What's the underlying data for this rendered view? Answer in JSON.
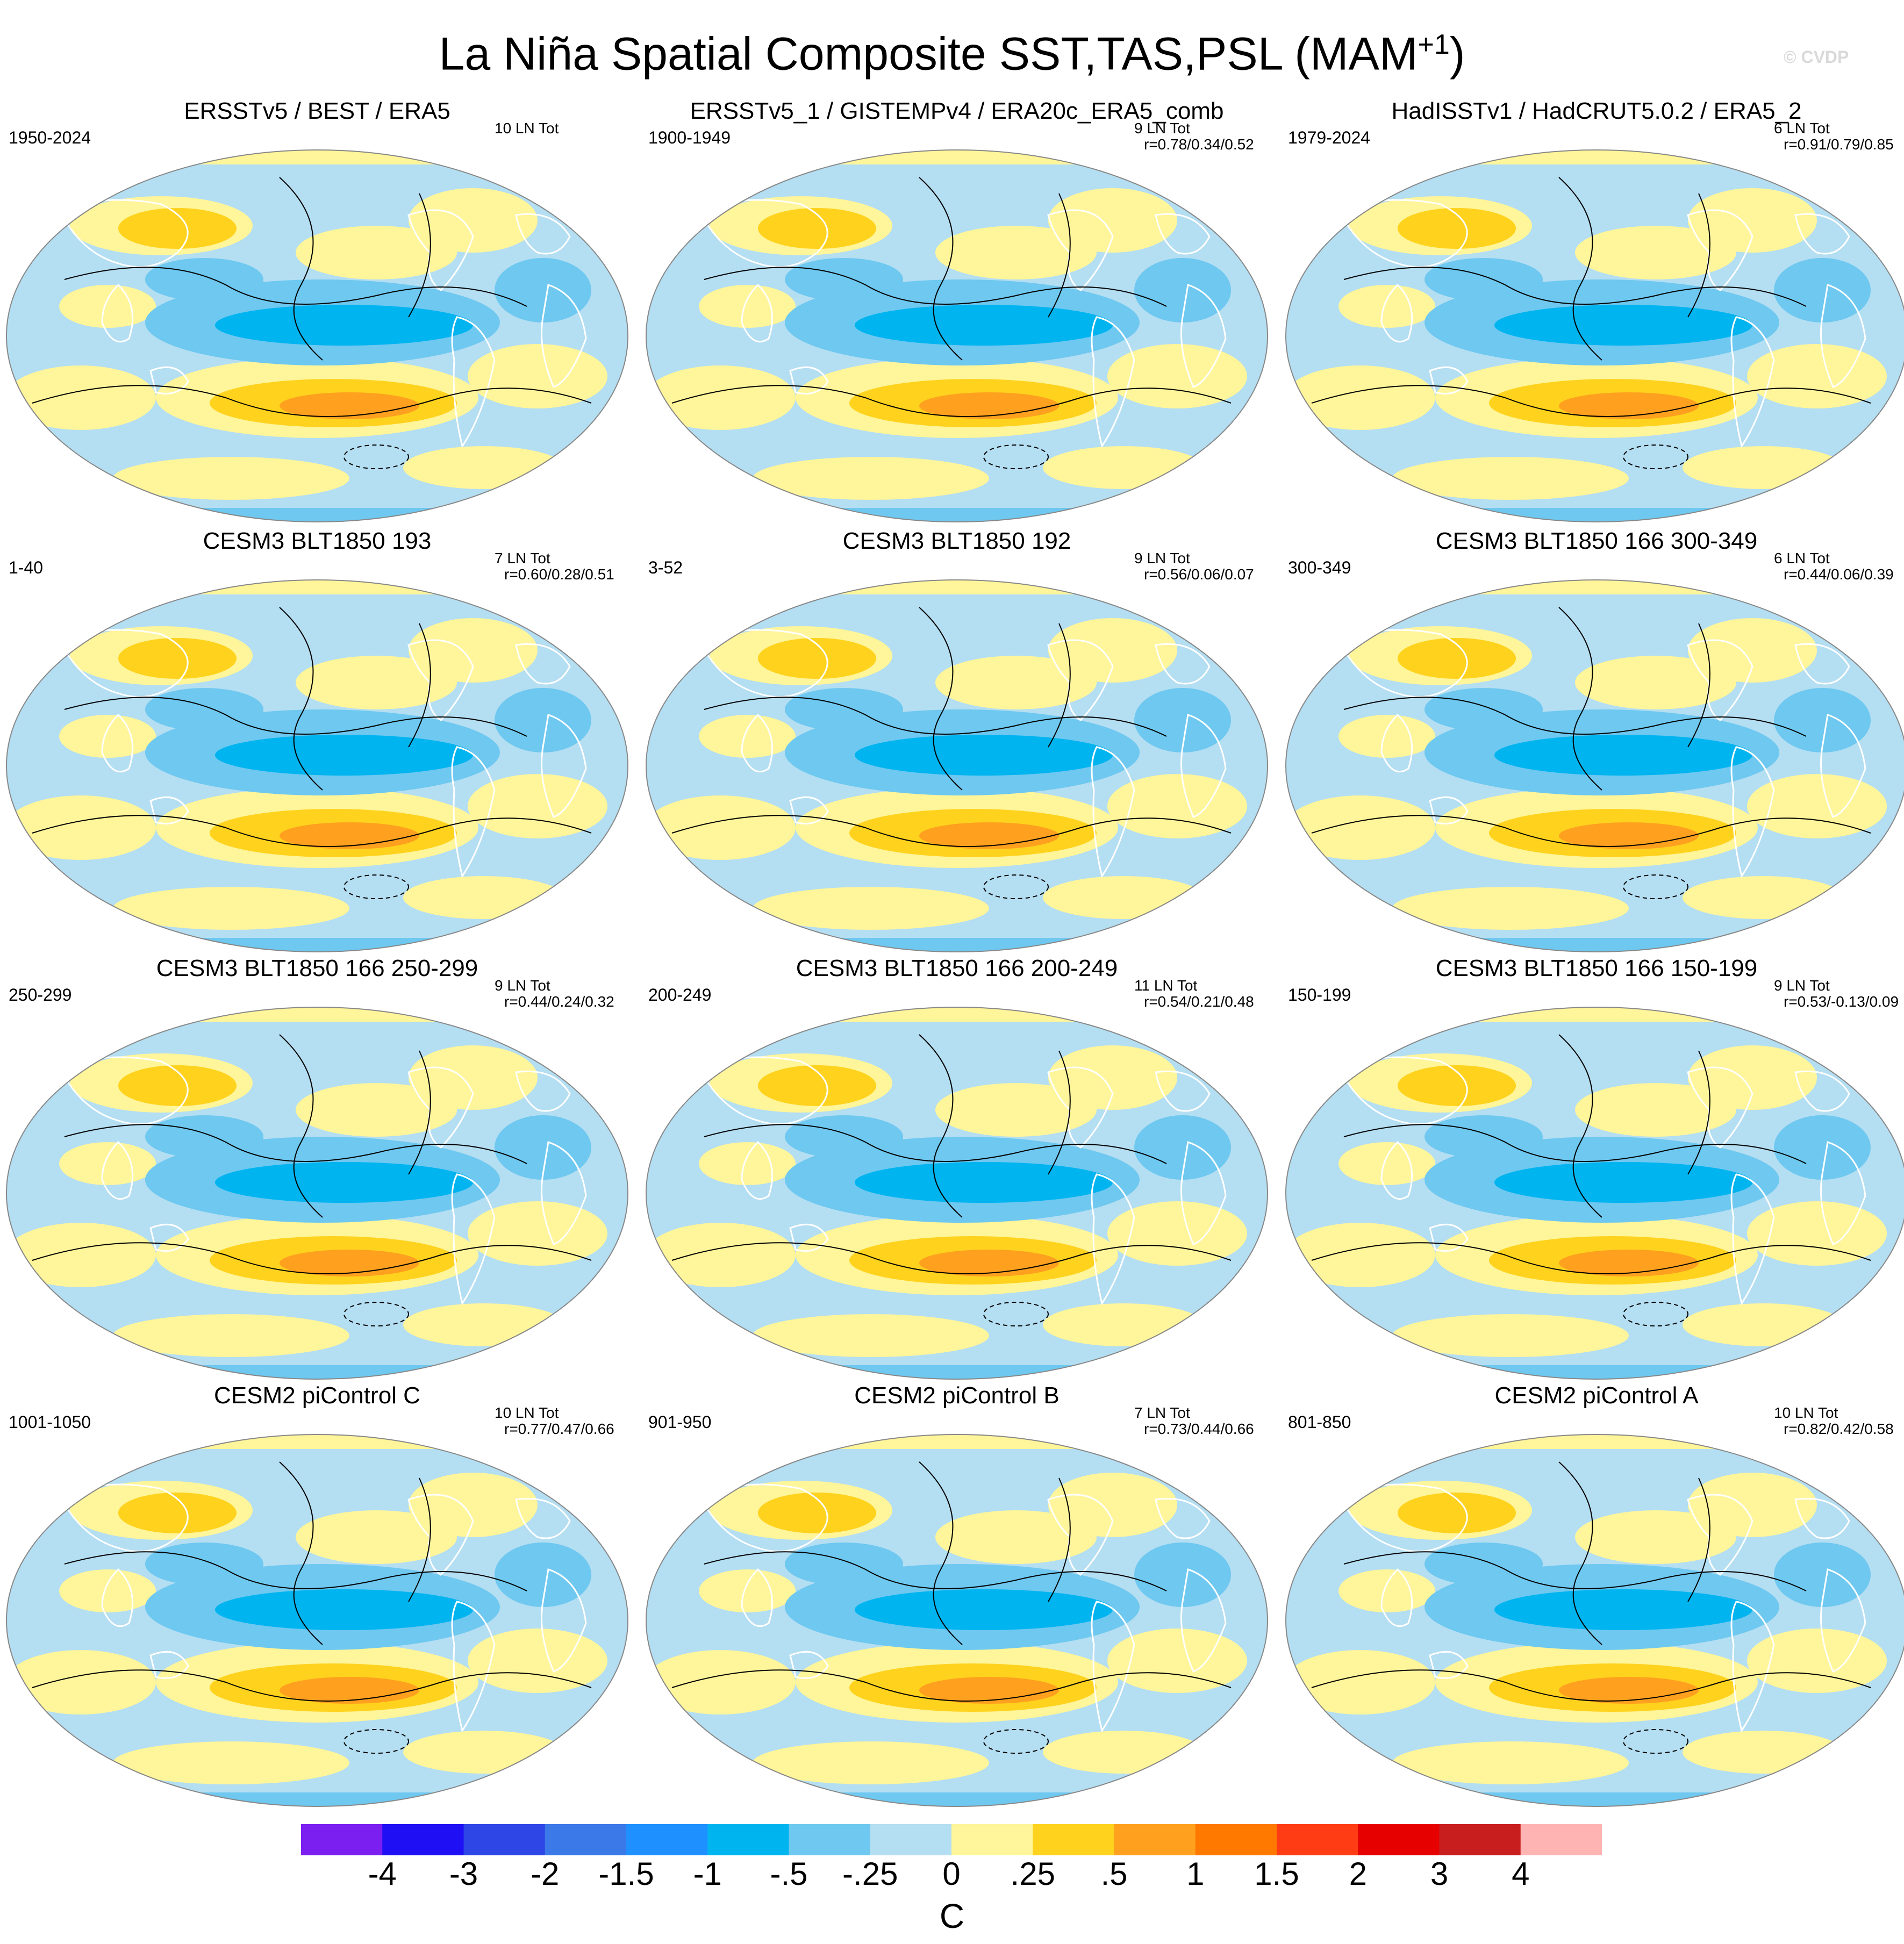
{
  "title": "La Niña Spatial Composite SST,TAS,PSL (MAM",
  "title_superscript": "+1",
  "title_close": ")",
  "watermark": "© CVDP",
  "panels": [
    {
      "title": "ERSSTv5 / BEST / ERA5",
      "period": "1950-2024",
      "count": "10 LN Tot",
      "stats": ""
    },
    {
      "title": "ERSSTv5_1 / GISTEMPv4 / ERA20c_ERA5_comb",
      "period": "1900-1949",
      "count": "9 LN Tot",
      "stats": "r=0.78/0.34/0.52"
    },
    {
      "title": "HadISSTv1 / HadCRUT5.0.2 / ERA5_2",
      "period": "1979-2024",
      "count": "6 LN Tot",
      "stats": "r=0.91/0.79/0.85"
    },
    {
      "title": "CESM3 BLT1850 193",
      "period": "1-40",
      "count": "7 LN Tot",
      "stats": "r=0.60/0.28/0.51"
    },
    {
      "title": "CESM3 BLT1850 192",
      "period": "3-52",
      "count": "9 LN Tot",
      "stats": "r=0.56/0.06/0.07"
    },
    {
      "title": "CESM3 BLT1850 166 300-349",
      "period": "300-349",
      "count": "6 LN Tot",
      "stats": "r=0.44/0.06/0.39"
    },
    {
      "title": "CESM3 BLT1850 166 250-299",
      "period": "250-299",
      "count": "9 LN Tot",
      "stats": "r=0.44/0.24/0.32"
    },
    {
      "title": "CESM3 BLT1850 166 200-249",
      "period": "200-249",
      "count": "11 LN Tot",
      "stats": "r=0.54/0.21/0.48"
    },
    {
      "title": "CESM3 BLT1850 166 150-199",
      "period": "150-199",
      "count": "9 LN Tot",
      "stats": "r=0.53/-0.13/0.09"
    },
    {
      "title": "CESM2 piControl C",
      "period": "1001-1050",
      "count": "10 LN Tot",
      "stats": "r=0.77/0.47/0.66"
    },
    {
      "title": "CESM2 piControl B",
      "period": "901-950",
      "count": "7 LN Tot",
      "stats": "r=0.73/0.44/0.66"
    },
    {
      "title": "CESM2 piControl A",
      "period": "801-850",
      "count": "10 LN Tot",
      "stats": "r=0.82/0.42/0.58"
    }
  ],
  "colorbar": {
    "unit": "C",
    "labels": [
      "-4",
      "-3",
      "-2",
      "-1.5",
      "-1",
      "-.5",
      "-.25",
      "0",
      ".25",
      ".5",
      "1",
      "1.5",
      "2",
      "3",
      "4"
    ],
    "colors": [
      "#7b1ff0",
      "#1e0ff5",
      "#2e46e6",
      "#3b78e8",
      "#1e90ff",
      "#00b4f0",
      "#6ec8f0",
      "#b4def2",
      "#fff59a",
      "#ffd21e",
      "#ffa01e",
      "#ff7800",
      "#ff3c14",
      "#e60000",
      "#c81e1e",
      "#ffb4b4"
    ]
  },
  "colors": {
    "cold_strong": "#00b4f0",
    "cold_medium": "#6ec8f0",
    "cold_light": "#b4def2",
    "warm_light": "#fff59a",
    "warm_medium": "#ffd21e",
    "warm_strong": "#ffa01e",
    "coast": "#ffffff",
    "contour": "#000000"
  }
}
